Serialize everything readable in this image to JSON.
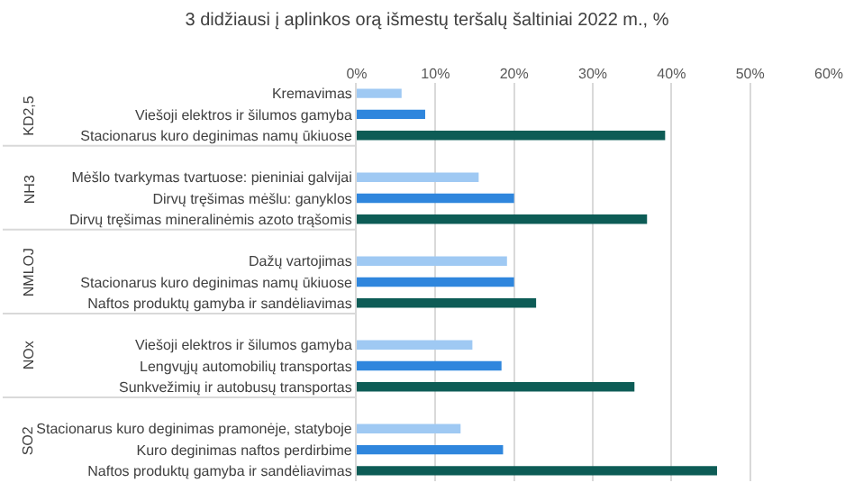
{
  "chart_data": {
    "type": "bar",
    "orientation": "horizontal",
    "title": "3 didžiausi į aplinkos orą išmestų teršalų šaltiniai 2022 m., %",
    "categories": [
      "Kremavimas",
      "Viešoji elektros ir šilumos gamyba",
      "Stacionarus kuro deginimas namų ūkiuose",
      null,
      "Mėšlo tvarkymas tvartuose: pieniniai galvijai",
      "Dirvų tręšimas mėšlu: ganyklos",
      "Dirvų tręšimas mineralinėmis azoto trąšomis",
      null,
      "Dažų vartojimas",
      "Stacionarus kuro deginimas namų ūkiuose",
      "Naftos produktų gamyba ir sandėliavimas",
      null,
      "Viešoji elektros ir šilumos gamyba",
      "Lengvųjų automobilių transportas",
      "Sunkvežimių ir autobusų transportas",
      null,
      "Stacionarus kuro deginimas pramonėje, statyboje",
      "Kuro deginimas naftos perdirbime",
      "Naftos produktų gamyba ir sandėliavimas"
    ],
    "values": [
      5.7,
      8.7,
      39.2,
      null,
      15.5,
      20.0,
      36.9,
      null,
      19.1,
      20.0,
      22.8,
      null,
      14.7,
      18.4,
      35.3,
      null,
      13.2,
      18.6,
      45.8
    ],
    "colors": [
      "#9fc9f3",
      "#2f86dd",
      "#0d5c56",
      null,
      "#9fc9f3",
      "#2f86dd",
      "#0d5c56",
      null,
      "#9fc9f3",
      "#2f86dd",
      "#0d5c56",
      null,
      "#9fc9f3",
      "#2f86dd",
      "#0d5c56",
      null,
      "#9fc9f3",
      "#2f86dd",
      "#0d5c56"
    ],
    "annotations": [
      "KD2,5",
      "NH3",
      "NMLOJ",
      "NOx",
      "SO2"
    ],
    "xlim": [
      0,
      60
    ],
    "xticks": [
      {
        "value": 0,
        "label": "0%"
      },
      {
        "value": 10,
        "label": "10%"
      },
      {
        "value": 20,
        "label": "20%"
      },
      {
        "value": 30,
        "label": "30%"
      },
      {
        "value": 40,
        "label": "40%"
      },
      {
        "value": 50,
        "label": "50%"
      },
      {
        "value": 60,
        "label": "60%"
      }
    ],
    "grid": "x",
    "legend": false
  }
}
